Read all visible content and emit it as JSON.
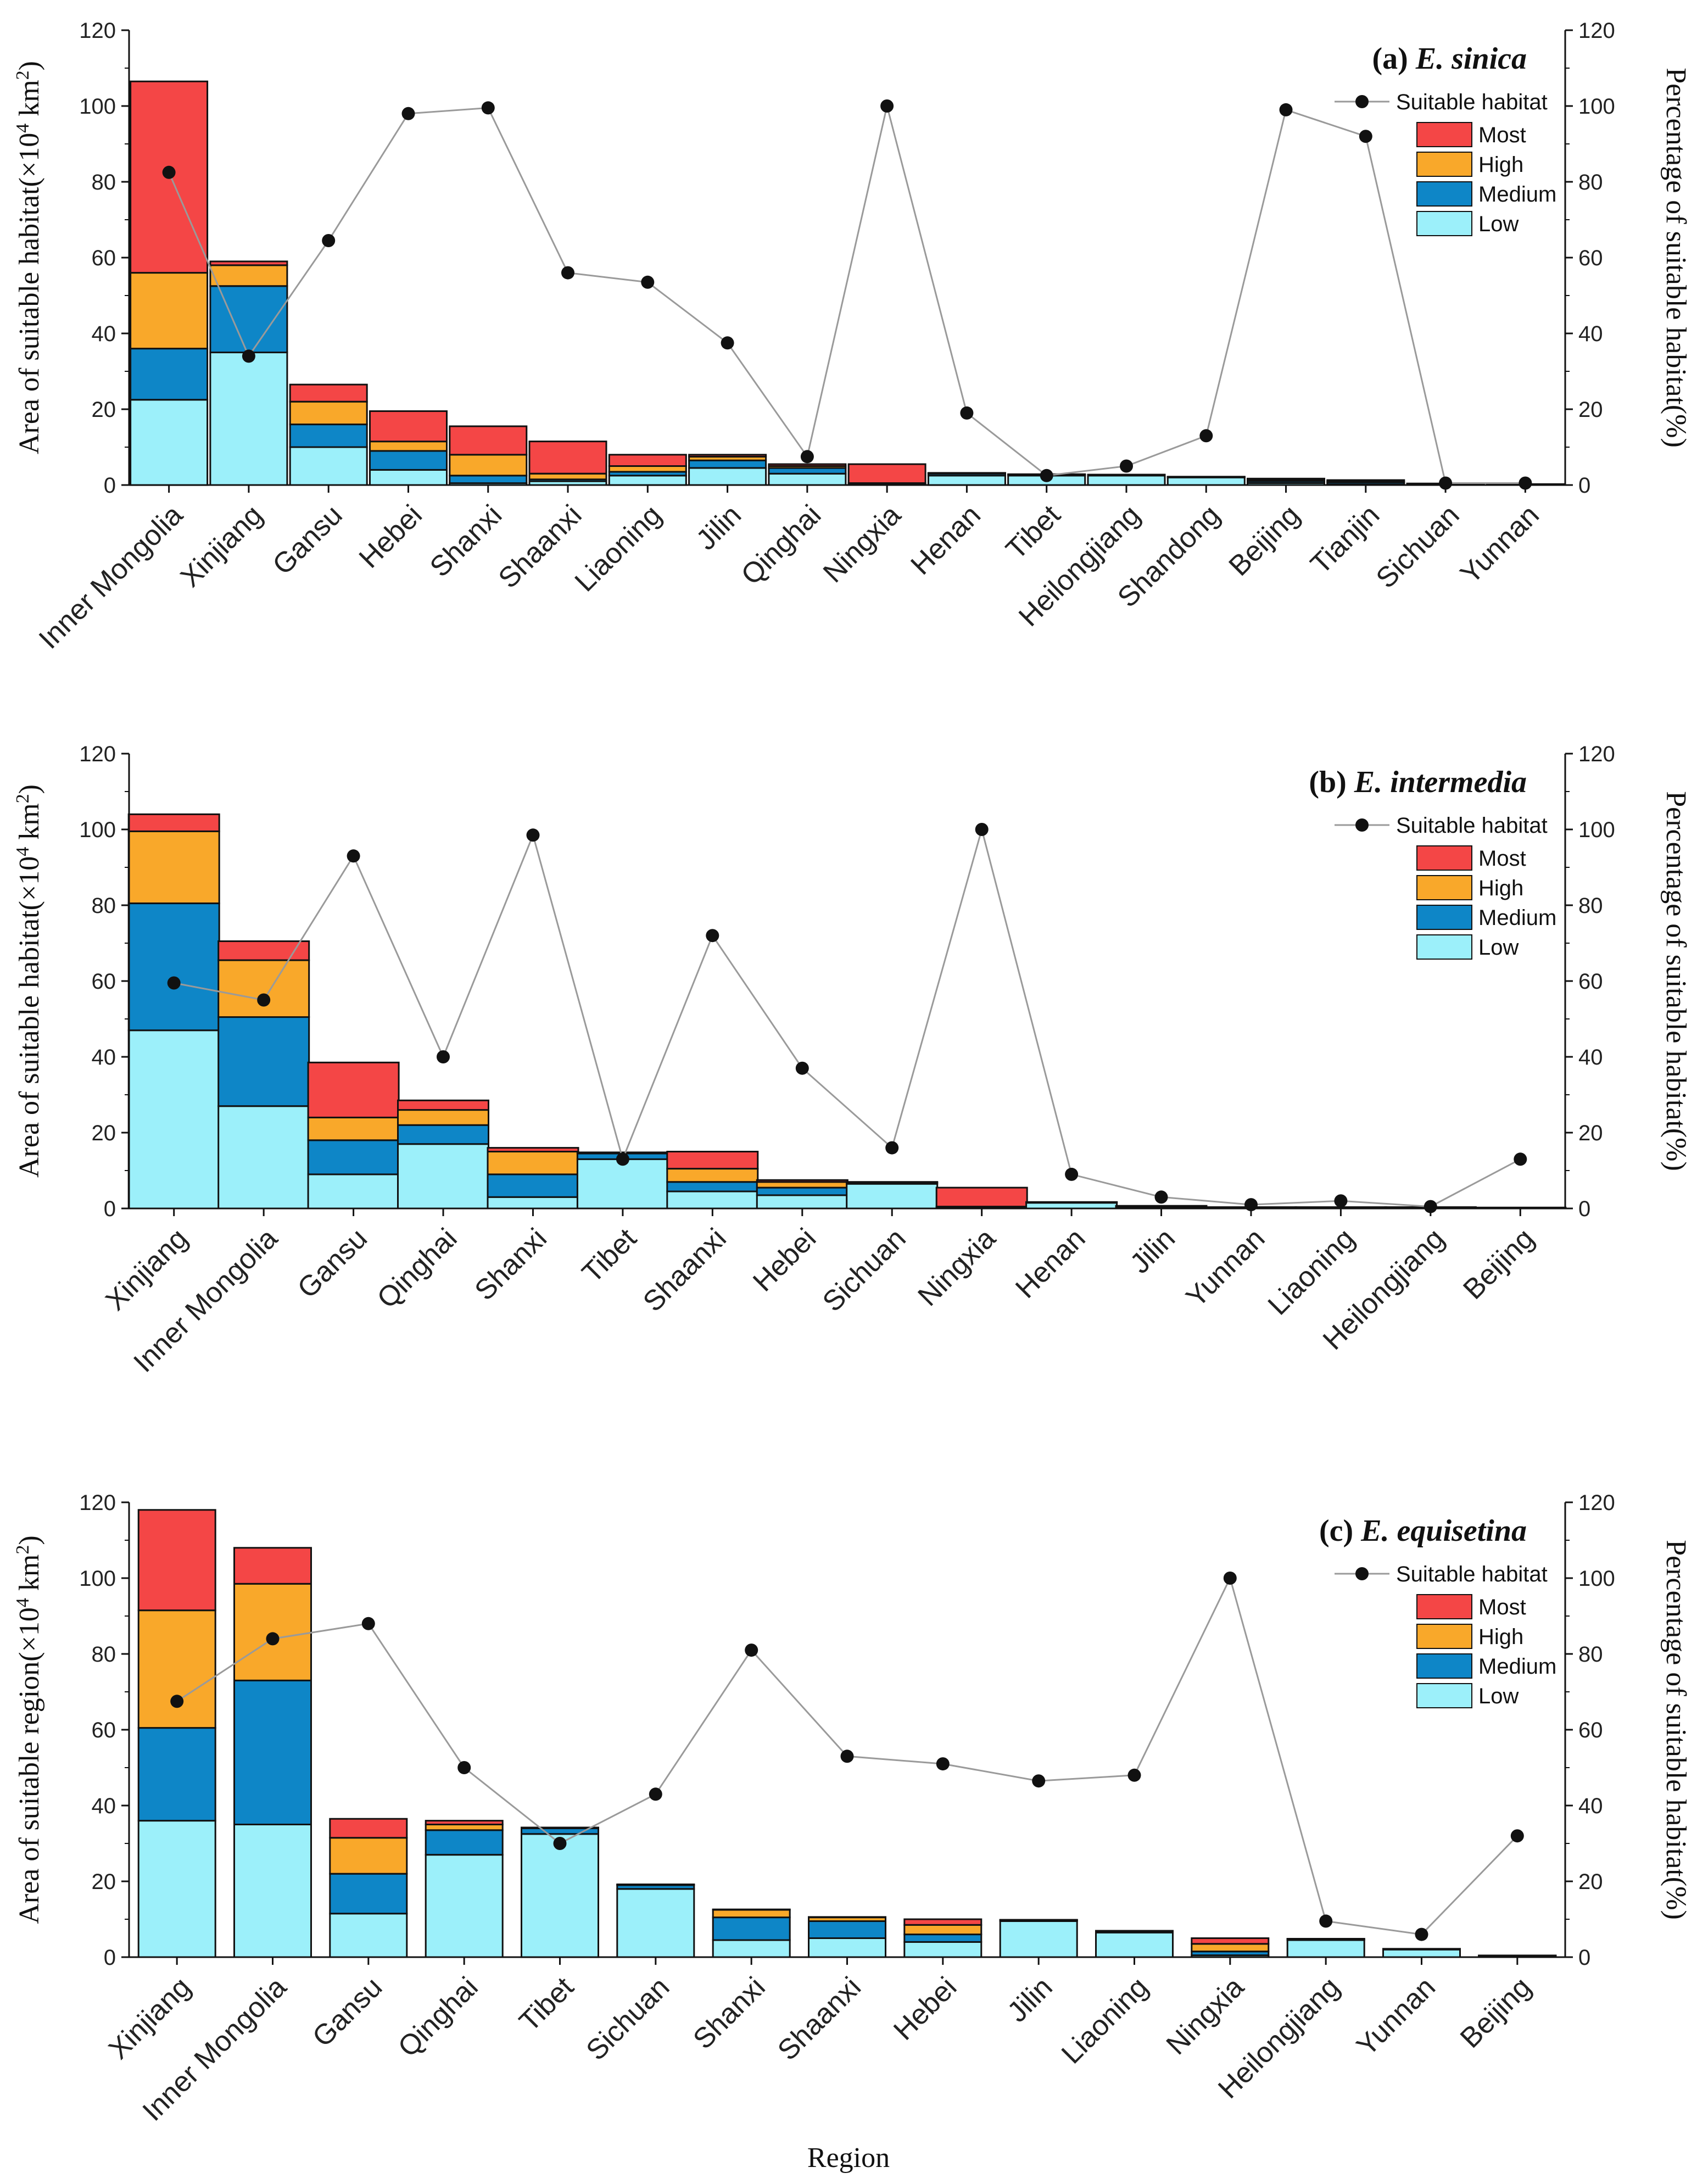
{
  "colors": {
    "most": "#f44646",
    "high": "#f9a82a",
    "medium": "#0e86c7",
    "low": "#9cf0fa",
    "line": "#9a9a9a",
    "dot": "#111111"
  },
  "legend": {
    "line_label": "Suitable habitat",
    "most": "Most",
    "high": "High",
    "medium": "Medium",
    "low": "Low"
  },
  "xlabel": "Region",
  "ylabel_right": "Percentage of suitable habitat(%)",
  "chart_data": [
    {
      "type": "bar",
      "stacked": true,
      "title_prefix": "(a)",
      "title_species": "E. sinica",
      "ylabel_main": "Area of suitable habitat(×10",
      "ylabel_sup": "4",
      "ylabel_unit": " km",
      "ylabel_sup2": "2",
      "ylabel_close": ")",
      "ylim": [
        0,
        120
      ],
      "y2lim": [
        0,
        120
      ],
      "yticks": [
        "0",
        "20",
        "40",
        "60",
        "80",
        "100",
        "120"
      ],
      "categories": [
        "Inner Mongolia",
        "Xinjiang",
        "Gansu",
        "Hebei",
        "Shanxi",
        "Shaanxi",
        "Liaoning",
        "Jilin",
        "Qinghai",
        "Ningxia",
        "Henan",
        "Tibet",
        "Heilongjiang",
        "Shandong",
        "Beijing",
        "Tianjin",
        "Sichuan",
        "Yunnan"
      ],
      "series": [
        {
          "name": "Low",
          "values": [
            22.5,
            35,
            10,
            4,
            0.5,
            1,
            2.5,
            4.5,
            3,
            0.2,
            2.5,
            2.5,
            2.5,
            2,
            0.5,
            0.2,
            0.2,
            0.1
          ]
        },
        {
          "name": "Medium",
          "values": [
            13.5,
            17.5,
            6,
            5,
            2,
            0.5,
            1,
            2,
            1.5,
            0.1,
            0.5,
            0.2,
            0.1,
            0.1,
            0.5,
            0.5,
            0.1,
            0.05
          ]
        },
        {
          "name": "High",
          "values": [
            20,
            5.5,
            6,
            2.5,
            5.5,
            1.5,
            1.5,
            1,
            0.5,
            0.2,
            0.1,
            0.1,
            0.1,
            0.05,
            0.3,
            0.3,
            0.05,
            0.05
          ]
        },
        {
          "name": "Most",
          "values": [
            50.5,
            1,
            4.5,
            8,
            7.5,
            8.5,
            3,
            0.5,
            0.5,
            5,
            0.1,
            0.05,
            0.05,
            0.05,
            0.4,
            0.3,
            0.05,
            0.05
          ]
        }
      ],
      "line": {
        "name": "Suitable habitat",
        "values": [
          82.5,
          34,
          64.5,
          98,
          99.5,
          56,
          53.5,
          37.5,
          7.5,
          100,
          19,
          2.5,
          5,
          13,
          99,
          92,
          0.5,
          0.5
        ]
      }
    },
    {
      "type": "bar",
      "stacked": true,
      "title_prefix": "(b)",
      "title_species": "E. intermedia",
      "ylabel_main": "Area of suitable habitat(×10",
      "ylabel_sup": "4",
      "ylabel_unit": " km",
      "ylabel_sup2": "2",
      "ylabel_close": ")",
      "ylim": [
        0,
        120
      ],
      "y2lim": [
        0,
        120
      ],
      "yticks": [
        "0",
        "20",
        "40",
        "60",
        "80",
        "100",
        "120"
      ],
      "categories": [
        "Xinjiang",
        "Inner Mongolia",
        "Gansu",
        "Qinghai",
        "Shanxi",
        "Tibet",
        "Shaanxi",
        "Hebei",
        "Sichuan",
        "Ningxia",
        "Henan",
        "Jilin",
        "Yunnan",
        "Liaoning",
        "Heilongjiang",
        "Beijing"
      ],
      "series": [
        {
          "name": "Low",
          "values": [
            47,
            27,
            9,
            17,
            3,
            13,
            4.5,
            3.5,
            6.5,
            0.2,
            1.5,
            0.3,
            0.2,
            0.2,
            0.2,
            0.1
          ]
        },
        {
          "name": "Medium",
          "values": [
            33.5,
            23.5,
            9,
            5,
            6,
            1.5,
            2.5,
            2,
            0.3,
            0.1,
            0.1,
            0.2,
            0.05,
            0.05,
            0.05,
            0.05
          ]
        },
        {
          "name": "High",
          "values": [
            19,
            15,
            6,
            4,
            6,
            0.2,
            3.5,
            1.5,
            0.1,
            0.2,
            0.05,
            0.1,
            0.05,
            0.05,
            0.05,
            0.05
          ]
        },
        {
          "name": "Most",
          "values": [
            4.5,
            5,
            14.5,
            2.5,
            1,
            0.1,
            4.5,
            0.5,
            0.1,
            5,
            0.05,
            0.1,
            0.05,
            0.05,
            0.05,
            0.05
          ]
        }
      ],
      "line": {
        "name": "Suitable habitat",
        "values": [
          59.5,
          55,
          93,
          40,
          98.5,
          13,
          72,
          37,
          16,
          100,
          9,
          3,
          1,
          2,
          0.5,
          13
        ]
      }
    },
    {
      "type": "bar",
      "stacked": true,
      "title_prefix": "(c)",
      "title_species": "E. equisetina",
      "ylabel_main": "Area of suitable region(×10",
      "ylabel_sup": "4",
      "ylabel_unit": " km",
      "ylabel_sup2": "2",
      "ylabel_close": ")",
      "ylim": [
        0,
        120
      ],
      "y2lim": [
        0,
        120
      ],
      "yticks": [
        "0",
        "20",
        "40",
        "60",
        "80",
        "100",
        "120"
      ],
      "categories": [
        "Xinjiang",
        "Inner Mongolia",
        "Gansu",
        "Qinghai",
        "Tibet",
        "Sichuan",
        "Shanxi",
        "Shaanxi",
        "Hebei",
        "Jilin",
        "Liaoning",
        "Ningxia",
        "Heilongjiang",
        "Yunnan",
        "Beijing"
      ],
      "series": [
        {
          "name": "Low",
          "values": [
            36,
            35,
            11.5,
            27,
            32.5,
            18,
            4.5,
            5,
            4,
            9.5,
            6.5,
            0.5,
            4.5,
            2,
            0.3
          ]
        },
        {
          "name": "Medium",
          "values": [
            24.5,
            38,
            10.5,
            6.5,
            1.5,
            1,
            6,
            4.5,
            2,
            0.2,
            0.3,
            1,
            0.2,
            0.1,
            0.05
          ]
        },
        {
          "name": "High",
          "values": [
            31,
            25.5,
            9.5,
            1.5,
            0.1,
            0.1,
            2,
            1,
            2.5,
            0.1,
            0.1,
            2,
            0.1,
            0.05,
            0.05
          ]
        },
        {
          "name": "Most",
          "values": [
            26.5,
            9.5,
            5,
            1,
            0.1,
            0.1,
            0.1,
            0.1,
            1.5,
            0.05,
            0.05,
            1.5,
            0.05,
            0.05,
            0.05
          ]
        }
      ],
      "line": {
        "name": "Suitable habitat",
        "values": [
          67.5,
          84,
          88,
          50,
          30,
          43,
          81,
          53,
          51,
          46.5,
          48,
          100,
          9.5,
          6,
          32
        ]
      }
    }
  ]
}
